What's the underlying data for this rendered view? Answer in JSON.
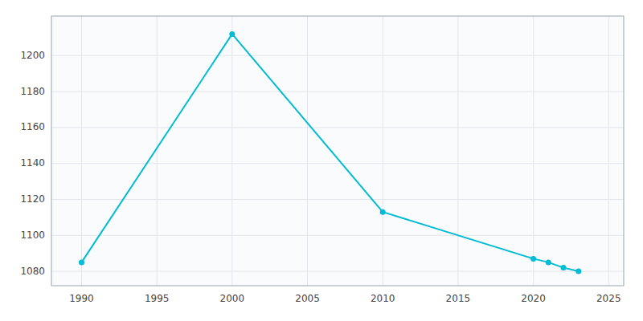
{
  "chart_data": {
    "type": "line",
    "x": [
      1990,
      2000,
      2010,
      2020,
      2021,
      2022,
      2023
    ],
    "values": [
      1085,
      1212,
      1113,
      1087,
      1085,
      1082,
      1080
    ],
    "color": "#00bcd4",
    "marker": "circle",
    "xlim": [
      1988,
      2026
    ],
    "xticks": [
      1990,
      1995,
      2000,
      2005,
      2010,
      2015,
      2020,
      2025
    ],
    "ylim": [
      1072,
      1222
    ],
    "yticks": [
      1080,
      1100,
      1120,
      1140,
      1160,
      1180,
      1200
    ],
    "grid": true
  }
}
